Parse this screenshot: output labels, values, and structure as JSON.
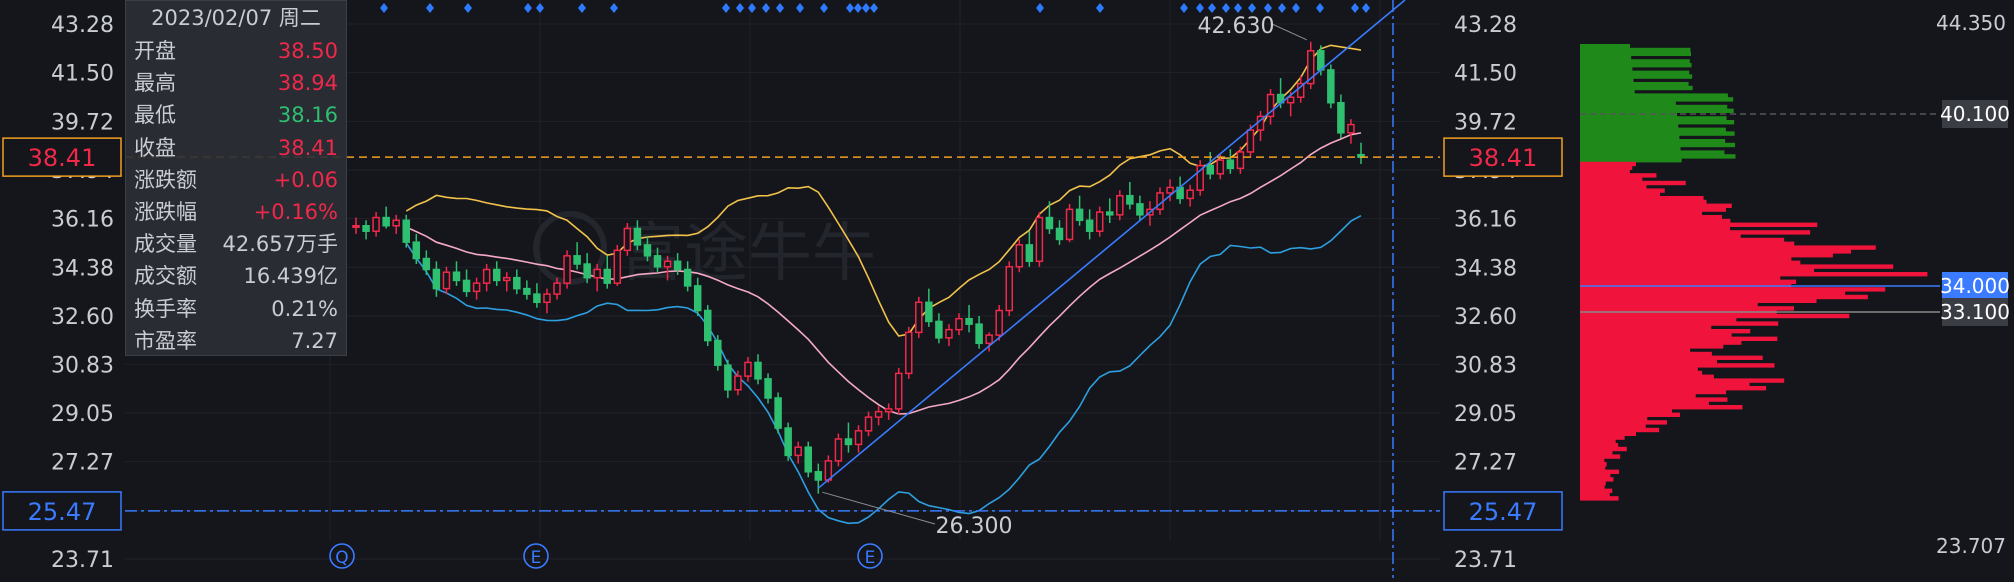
{
  "chart_data": [
    {
      "type": "candlestick",
      "y_ticks": [
        "43.28",
        "41.50",
        "39.72",
        "37.94",
        "36.16",
        "34.38",
        "32.60",
        "30.83",
        "29.05",
        "27.27",
        "25.47",
        "23.71"
      ],
      "ylim": [
        23.71,
        43.28
      ],
      "candles_note": "approximate daily OHLC read from chart, oldest to newest",
      "candles": [
        [
          35.9,
          36.2,
          35.6,
          35.9
        ],
        [
          35.9,
          36.1,
          35.4,
          35.7
        ],
        [
          35.7,
          36.4,
          35.5,
          36.2
        ],
        [
          36.2,
          36.6,
          35.8,
          35.9
        ],
        [
          35.9,
          36.3,
          35.6,
          36.1
        ],
        [
          36.1,
          36.3,
          35.1,
          35.3
        ],
        [
          35.3,
          35.6,
          34.5,
          34.7
        ],
        [
          34.7,
          35.0,
          34.1,
          34.3
        ],
        [
          34.3,
          34.6,
          33.3,
          33.6
        ],
        [
          33.6,
          34.4,
          33.4,
          34.2
        ],
        [
          34.2,
          34.6,
          33.7,
          33.9
        ],
        [
          33.9,
          34.3,
          33.3,
          33.5
        ],
        [
          33.5,
          34.0,
          33.2,
          33.8
        ],
        [
          33.8,
          34.5,
          33.5,
          34.3
        ],
        [
          34.3,
          34.6,
          33.7,
          33.9
        ],
        [
          33.9,
          34.2,
          33.5,
          34.0
        ],
        [
          34.0,
          34.3,
          33.4,
          33.6
        ],
        [
          33.6,
          33.9,
          33.2,
          33.4
        ],
        [
          33.4,
          33.8,
          32.9,
          33.1
        ],
        [
          33.1,
          33.6,
          32.7,
          33.4
        ],
        [
          33.4,
          34.0,
          33.2,
          33.8
        ],
        [
          33.8,
          35.0,
          33.6,
          34.8
        ],
        [
          34.8,
          35.3,
          34.3,
          34.5
        ],
        [
          34.5,
          34.9,
          33.8,
          34.0
        ],
        [
          34.0,
          34.5,
          33.5,
          34.3
        ],
        [
          34.3,
          34.8,
          33.6,
          33.8
        ],
        [
          33.8,
          35.2,
          33.7,
          35.0
        ],
        [
          35.0,
          36.0,
          34.8,
          35.8
        ],
        [
          35.8,
          36.1,
          35.0,
          35.2
        ],
        [
          35.2,
          35.5,
          34.6,
          34.8
        ],
        [
          34.8,
          35.1,
          34.2,
          34.4
        ],
        [
          34.4,
          34.8,
          33.9,
          34.6
        ],
        [
          34.6,
          34.9,
          34.1,
          34.3
        ],
        [
          34.3,
          34.6,
          33.5,
          33.7
        ],
        [
          33.7,
          34.0,
          32.6,
          32.8
        ],
        [
          32.8,
          33.0,
          31.5,
          31.7
        ],
        [
          31.7,
          31.9,
          30.6,
          30.8
        ],
        [
          30.8,
          31.0,
          29.6,
          29.9
        ],
        [
          29.9,
          30.6,
          29.7,
          30.4
        ],
        [
          30.4,
          31.1,
          30.2,
          30.9
        ],
        [
          30.9,
          31.2,
          30.1,
          30.3
        ],
        [
          30.3,
          30.5,
          29.4,
          29.6
        ],
        [
          29.6,
          29.8,
          28.3,
          28.5
        ],
        [
          28.5,
          28.7,
          27.3,
          27.5
        ],
        [
          27.5,
          28.0,
          27.2,
          27.8
        ],
        [
          27.8,
          28.0,
          26.7,
          26.9
        ],
        [
          26.9,
          27.2,
          26.1,
          26.6
        ],
        [
          26.6,
          27.5,
          26.5,
          27.3
        ],
        [
          27.3,
          28.3,
          27.1,
          28.1
        ],
        [
          28.1,
          28.7,
          27.6,
          27.9
        ],
        [
          27.9,
          28.6,
          27.6,
          28.4
        ],
        [
          28.4,
          29.1,
          28.2,
          28.9
        ],
        [
          28.9,
          29.3,
          28.6,
          29.1
        ],
        [
          29.1,
          29.4,
          28.8,
          29.2
        ],
        [
          29.2,
          30.7,
          29.0,
          30.5
        ],
        [
          30.5,
          32.2,
          30.3,
          32.0
        ],
        [
          32.0,
          33.3,
          31.8,
          33.1
        ],
        [
          33.1,
          33.6,
          32.2,
          32.4
        ],
        [
          32.4,
          32.7,
          31.6,
          31.8
        ],
        [
          31.8,
          32.3,
          31.5,
          32.1
        ],
        [
          32.1,
          32.7,
          31.9,
          32.5
        ],
        [
          32.5,
          33.0,
          32.0,
          32.3
        ],
        [
          32.3,
          32.6,
          31.4,
          31.6
        ],
        [
          31.6,
          32.0,
          31.3,
          31.9
        ],
        [
          31.9,
          33.0,
          31.7,
          32.8
        ],
        [
          32.8,
          34.6,
          32.6,
          34.4
        ],
        [
          34.4,
          35.4,
          34.2,
          35.2
        ],
        [
          35.2,
          35.7,
          34.4,
          34.6
        ],
        [
          34.6,
          36.4,
          34.4,
          36.2
        ],
        [
          36.2,
          36.8,
          35.6,
          35.8
        ],
        [
          35.8,
          36.1,
          35.2,
          35.4
        ],
        [
          35.4,
          36.7,
          35.3,
          36.5
        ],
        [
          36.5,
          37.0,
          35.9,
          36.1
        ],
        [
          36.1,
          36.5,
          35.4,
          35.7
        ],
        [
          35.7,
          36.6,
          35.5,
          36.4
        ],
        [
          36.4,
          36.9,
          36.0,
          36.3
        ],
        [
          36.3,
          37.2,
          36.1,
          37.0
        ],
        [
          37.0,
          37.5,
          36.5,
          36.7
        ],
        [
          36.7,
          37.0,
          36.1,
          36.3
        ],
        [
          36.3,
          36.8,
          35.9,
          36.5
        ],
        [
          36.5,
          37.3,
          36.3,
          37.1
        ],
        [
          37.1,
          37.6,
          36.8,
          37.3
        ],
        [
          37.3,
          37.7,
          36.7,
          36.9
        ],
        [
          36.9,
          37.4,
          36.6,
          37.2
        ],
        [
          37.2,
          38.3,
          37.0,
          38.1
        ],
        [
          38.1,
          38.6,
          37.6,
          37.8
        ],
        [
          37.8,
          38.5,
          37.6,
          38.3
        ],
        [
          38.3,
          38.7,
          37.8,
          38.0
        ],
        [
          38.0,
          38.8,
          37.8,
          38.6
        ],
        [
          38.6,
          39.6,
          38.4,
          39.4
        ],
        [
          39.4,
          40.1,
          39.0,
          39.9
        ],
        [
          39.9,
          40.9,
          39.6,
          40.7
        ],
        [
          40.7,
          41.3,
          40.2,
          40.4
        ],
        [
          40.4,
          40.8,
          39.9,
          40.6
        ],
        [
          40.6,
          41.4,
          40.4,
          41.1
        ],
        [
          41.1,
          42.63,
          40.9,
          42.3
        ],
        [
          42.3,
          42.5,
          41.4,
          41.6
        ],
        [
          41.6,
          41.8,
          40.2,
          40.4
        ],
        [
          40.4,
          40.7,
          39.1,
          39.3
        ],
        [
          39.3,
          39.8,
          38.9,
          39.6
        ],
        [
          38.5,
          38.94,
          38.16,
          38.41
        ]
      ],
      "bollinger_note": "upper (yellow), middle (pink), lower (blue) band approximations"
    },
    {
      "type": "bar",
      "orientation": "horizontal",
      "y_ticks": [
        "44.350",
        "23.707"
      ],
      "ylim": [
        23.707,
        44.35
      ],
      "markers": [
        "40.100",
        "34.000",
        "33.100"
      ]
    }
  ],
  "tooltip": {
    "date": "2023/02/07 周二",
    "rows": [
      {
        "label": "开盘",
        "value": "38.50",
        "tone": "up"
      },
      {
        "label": "最高",
        "value": "38.94",
        "tone": "up"
      },
      {
        "label": "最低",
        "value": "38.16",
        "tone": "down"
      },
      {
        "label": "收盘",
        "value": "38.41",
        "tone": "up"
      },
      {
        "label": "涨跌额",
        "value": "+0.06",
        "tone": "up"
      },
      {
        "label": "涨跌幅",
        "value": "+0.16%",
        "tone": "up"
      },
      {
        "label": "成交量",
        "value": "42.657万手",
        "tone": "neutral"
      },
      {
        "label": "成交额",
        "value": "16.439亿",
        "tone": "neutral"
      },
      {
        "label": "换手率",
        "value": "0.21%",
        "tone": "neutral"
      },
      {
        "label": "市盈率",
        "value": "7.27",
        "tone": "neutral"
      }
    ]
  },
  "price_labels": {
    "current_left": "38.41",
    "current_right": "38.41",
    "cursor_left": "25.47",
    "cursor_right": "25.47",
    "high_annotation": "42.630",
    "low_annotation": "26.300"
  },
  "event_markers": [
    "Q",
    "E",
    "E"
  ],
  "watermark": "富途牛牛",
  "colors": {
    "background": "#14161b",
    "up": "#f0284a",
    "down": "#2fbf71",
    "band_upper": "#f2c24b",
    "band_middle": "#f4a9c4",
    "band_lower": "#2e9fe0",
    "trendline": "#3a7bff",
    "current_price": "#f0a020",
    "cursor": "#3a7bff",
    "diamond": "#2f7bff",
    "profile_up": "#f0143c",
    "profile_down": "#1f8a1a"
  }
}
